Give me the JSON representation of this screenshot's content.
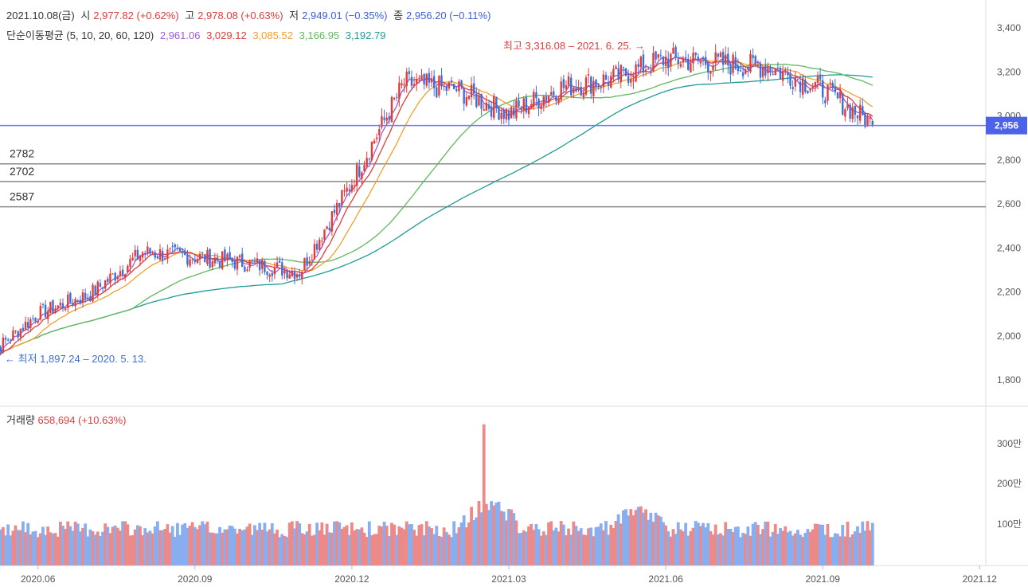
{
  "header": {
    "date": "2021.10.08(금)",
    "open_label": "시",
    "open_value": "2,977.82 (+0.62%)",
    "high_label": "고",
    "high_value": "2,978.08 (+0.63%)",
    "low_label": "저",
    "low_value": "2,949.01 (−0.35%)",
    "close_label": "종",
    "close_value": "2,956.20 (−0.11%)"
  },
  "ma": {
    "label": "단순이동평균 (5, 10, 20, 60, 120)",
    "values": [
      {
        "period": 5,
        "value": "2,961.06",
        "color": "#a05bd6"
      },
      {
        "period": 10,
        "value": "3,029.12",
        "color": "#e03c3c"
      },
      {
        "period": 20,
        "value": "3,085.52",
        "color": "#f0a030"
      },
      {
        "period": 60,
        "value": "3,166.95",
        "color": "#5fb85f"
      },
      {
        "period": 120,
        "value": "3,192.79",
        "color": "#1f9a96"
      }
    ]
  },
  "volume": {
    "label": "거래량",
    "value": "658,694 (+10.63%)"
  },
  "chart_data": {
    "type": "candlestick",
    "price_axis": {
      "ticks": [
        "3,400",
        "3,200",
        "3,000",
        "2,800",
        "2,600",
        "2,400",
        "2,200",
        "2,000",
        "1,800"
      ],
      "ylim": [
        1700,
        3470
      ]
    },
    "volume_axis": {
      "ticks": [
        "300만",
        "200만",
        "100만"
      ]
    },
    "x_ticks": [
      "2020.06",
      "2020.09",
      "2020.12",
      "2021.03",
      "2021.06",
      "2021.09",
      "2021.12"
    ],
    "current_price": {
      "value": 2956,
      "label": "2,956",
      "color": "#6b7ff0"
    },
    "levels": [
      {
        "value": 2782,
        "label": "2782"
      },
      {
        "value": 2702,
        "label": "2702"
      },
      {
        "value": 2587,
        "label": "2587"
      }
    ],
    "high_annotation": "최고 3,316.08 – 2021. 6. 25. →",
    "low_annotation": "← 최저 1,897.24 – 2020. 5. 13.",
    "up_color": "#e03c3c",
    "down_color": "#3b6fd9",
    "vol_up_color": "#ec8a8a",
    "vol_down_color": "#89aef0",
    "anchors_time": [
      "2020.05",
      "2020.06",
      "2020.07",
      "2020.08",
      "2020.09",
      "2020.10",
      "2020.11",
      "2020.12",
      "2021.01",
      "2021.02",
      "2021.03",
      "2021.04",
      "2021.05",
      "2021.06",
      "2021.07",
      "2021.08",
      "2021.09",
      "2021.10"
    ],
    "anchors_close": [
      1900,
      2100,
      2190,
      2380,
      2360,
      2330,
      2290,
      2700,
      3150,
      3120,
      3010,
      3130,
      3170,
      3260,
      3240,
      3220,
      3120,
      2956
    ]
  }
}
